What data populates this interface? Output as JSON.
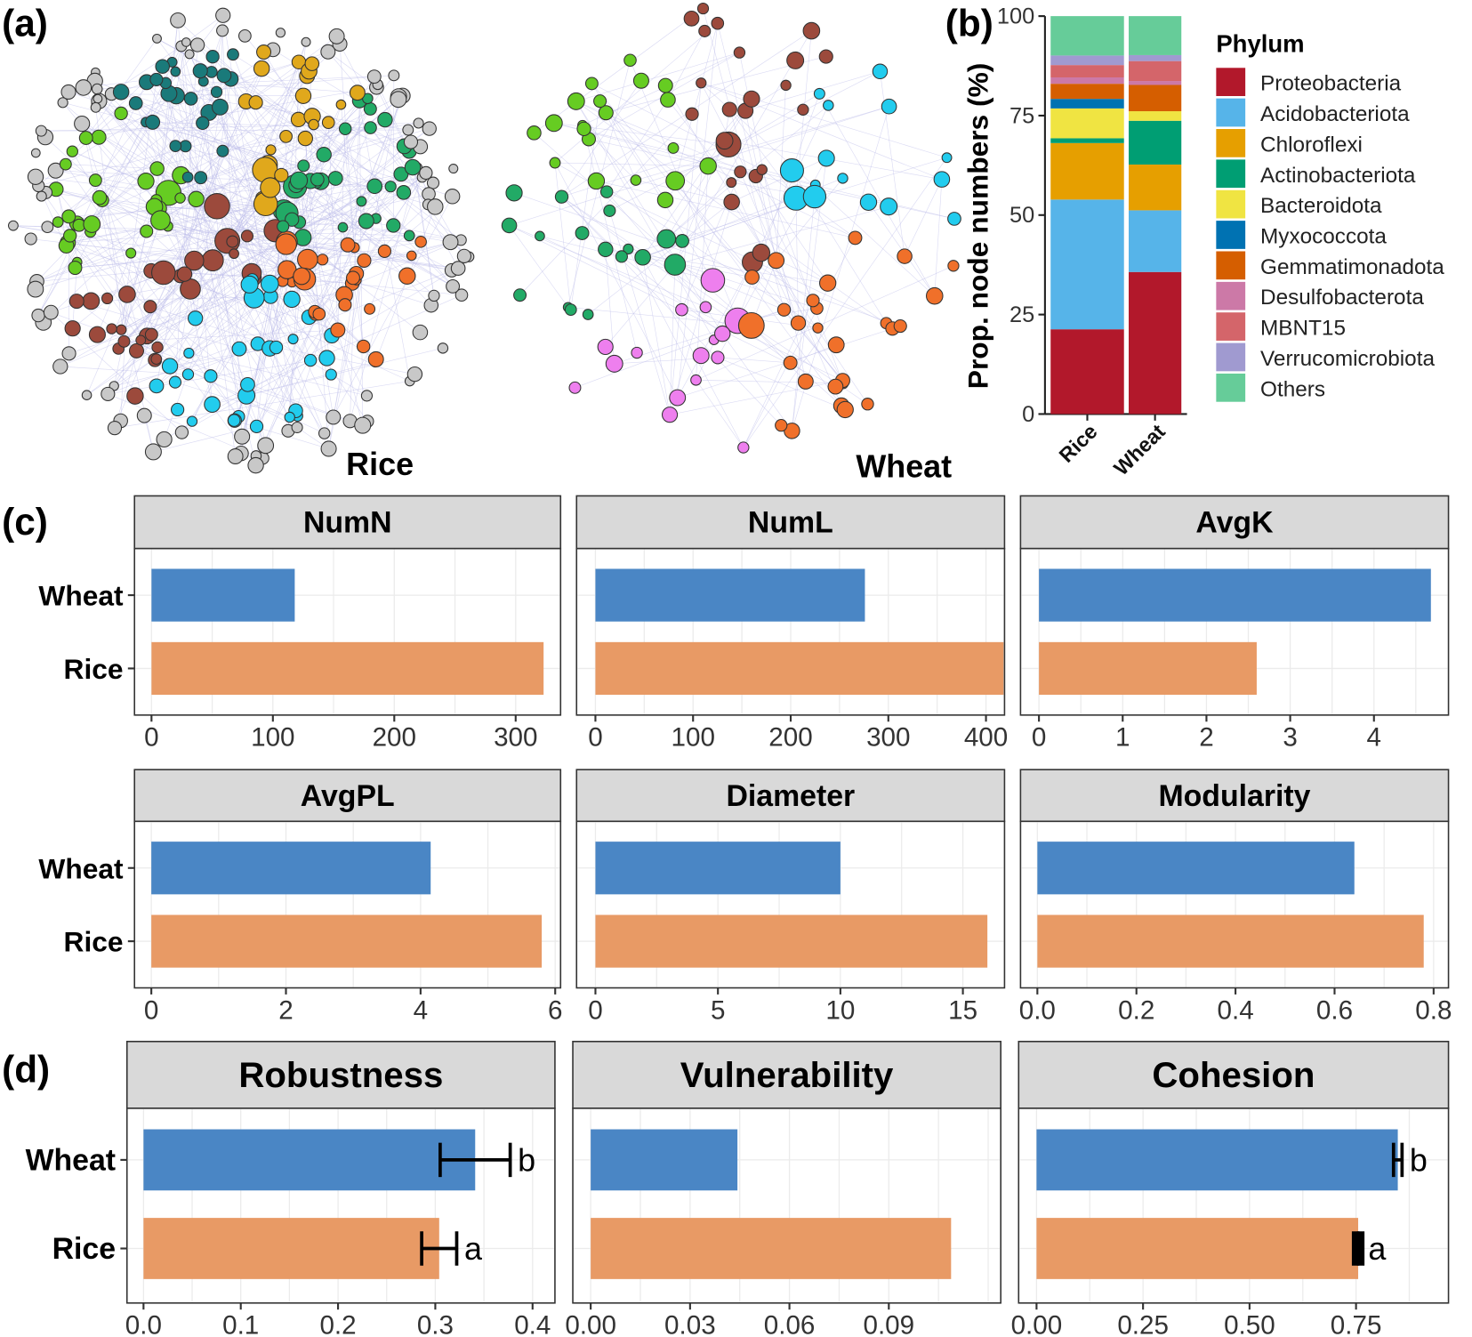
{
  "panel_labels": {
    "a": "(a)",
    "b": "(b)",
    "c": "(c)",
    "d": "(d)"
  },
  "network": {
    "rice_label": "Rice",
    "wheat_label": "Wheat",
    "colors": {
      "brown": "#9c4a3c",
      "pink": "#ee7fee",
      "cyan": "#22ccee",
      "green": "#66cc22",
      "orange": "#f0702a",
      "teal": "#22aa66",
      "gold": "#e0a81c",
      "darkteal": "#1a7a7a",
      "grey": "#c8c8c8",
      "olive": "#5a7a3a",
      "purple": "#c080d0"
    }
  },
  "chart_data": [
    {
      "type": "bar",
      "stacked": true,
      "panel": "b",
      "ylabel": "Prop. node numbers (%)",
      "ylim": [
        0,
        100
      ],
      "yticks": [
        "0",
        "25",
        "50",
        "75",
        "100"
      ],
      "categories": [
        "Rice",
        "Wheat"
      ],
      "legend_title": "Phylum",
      "legend_position": "right",
      "series": [
        {
          "name": "Proteobacteria",
          "color": "#b2182b",
          "values": [
            21.3,
            35.7
          ]
        },
        {
          "name": "Acidobacteriota",
          "color": "#56b4e9",
          "values": [
            32.6,
            15.5
          ]
        },
        {
          "name": "Chloroflexi",
          "color": "#e69f00",
          "values": [
            14.2,
            11.5
          ]
        },
        {
          "name": "Actinobacteriota",
          "color": "#009e73",
          "values": [
            1.2,
            11.0
          ]
        },
        {
          "name": "Bacteroidota",
          "color": "#f0e442",
          "values": [
            7.5,
            2.4
          ]
        },
        {
          "name": "Myxococcota",
          "color": "#0072b2",
          "values": [
            2.4,
            0.0
          ]
        },
        {
          "name": "Gemmatimonadota",
          "color": "#d55e00",
          "values": [
            3.8,
            6.6
          ]
        },
        {
          "name": "Desulfobacterota",
          "color": "#cc79a7",
          "values": [
            1.6,
            1.0
          ]
        },
        {
          "name": "MBNT15",
          "color": "#d4656a",
          "values": [
            3.1,
            5.0
          ]
        },
        {
          "name": "Verrucomicrobiota",
          "color": "#a09ad0",
          "values": [
            2.4,
            1.5
          ]
        },
        {
          "name": "Others",
          "color": "#66cc99",
          "values": [
            9.9,
            9.8
          ]
        }
      ]
    },
    {
      "type": "bar",
      "panel": "c",
      "orientation": "horizontal",
      "categories": [
        "Wheat",
        "Rice"
      ],
      "colors": {
        "Wheat": "#4a86c5",
        "Rice": "#e89a65"
      },
      "facets": [
        {
          "title": "NumN",
          "values": [
            118,
            323
          ],
          "xlim": [
            -14,
            337
          ],
          "xticks": [
            "0",
            "100",
            "200",
            "300"
          ],
          "tickvals": [
            0,
            100,
            200,
            300
          ]
        },
        {
          "title": "NumL",
          "values": [
            276,
            418
          ],
          "xlim": [
            -19.3,
            419
          ],
          "xticks": [
            "0",
            "100",
            "200",
            "300",
            "400"
          ],
          "tickvals": [
            0,
            100,
            200,
            300,
            400
          ]
        },
        {
          "title": "AvgK",
          "values": [
            4.68,
            2.6
          ],
          "xlim": [
            -0.22,
            4.89
          ],
          "xticks": [
            "0",
            "1",
            "2",
            "3",
            "4"
          ],
          "tickvals": [
            0,
            1,
            2,
            3,
            4
          ]
        },
        {
          "title": "AvgPL",
          "values": [
            4.15,
            5.8
          ],
          "xlim": [
            -0.25,
            6.08
          ],
          "xticks": [
            "0",
            "2",
            "4",
            "6"
          ],
          "tickvals": [
            0,
            2,
            4,
            6
          ]
        },
        {
          "title": "Diameter",
          "values": [
            10,
            16
          ],
          "xlim": [
            -0.77,
            16.7
          ],
          "xticks": [
            "0",
            "5",
            "10",
            "15"
          ],
          "tickvals": [
            0,
            5,
            10,
            15
          ]
        },
        {
          "title": "Modularity",
          "values": [
            0.64,
            0.78
          ],
          "xlim": [
            -0.034,
            0.83
          ],
          "xticks": [
            "0.0",
            "0.2",
            "0.4",
            "0.6",
            "0.8"
          ],
          "tickvals": [
            0,
            0.2,
            0.4,
            0.6,
            0.8
          ]
        }
      ]
    },
    {
      "type": "bar",
      "panel": "d",
      "orientation": "horizontal",
      "categories": [
        "Wheat",
        "Rice"
      ],
      "colors": {
        "Wheat": "#4a86c5",
        "Rice": "#e89a65"
      },
      "facets": [
        {
          "title": "Robustness",
          "values": [
            0.341,
            0.304
          ],
          "errors": [
            0.036,
            0.018
          ],
          "letters": [
            "b",
            "a"
          ],
          "xlim": [
            -0.017,
            0.423
          ],
          "xticks": [
            "0.0",
            "0.1",
            "0.2",
            "0.3",
            "0.4"
          ],
          "tickvals": [
            0,
            0.1,
            0.2,
            0.3,
            0.4
          ]
        },
        {
          "title": "Vulnerability",
          "values": [
            0.0443,
            0.1088
          ],
          "xlim": [
            -0.0054,
            0.1238
          ],
          "xticks": [
            "0.00",
            "0.03",
            "0.06",
            "0.09"
          ],
          "tickvals": [
            0,
            0.03,
            0.06,
            0.09
          ]
        },
        {
          "title": "Cohesion",
          "values": [
            0.848,
            0.755
          ],
          "errors": [
            0.01,
            0.006
          ],
          "letters": [
            "b",
            "a"
          ],
          "xlim": [
            -0.042,
            0.967
          ],
          "xticks": [
            "0.00",
            "0.25",
            "0.50",
            "0.75"
          ],
          "tickvals": [
            0,
            0.25,
            0.5,
            0.75
          ]
        }
      ]
    }
  ]
}
